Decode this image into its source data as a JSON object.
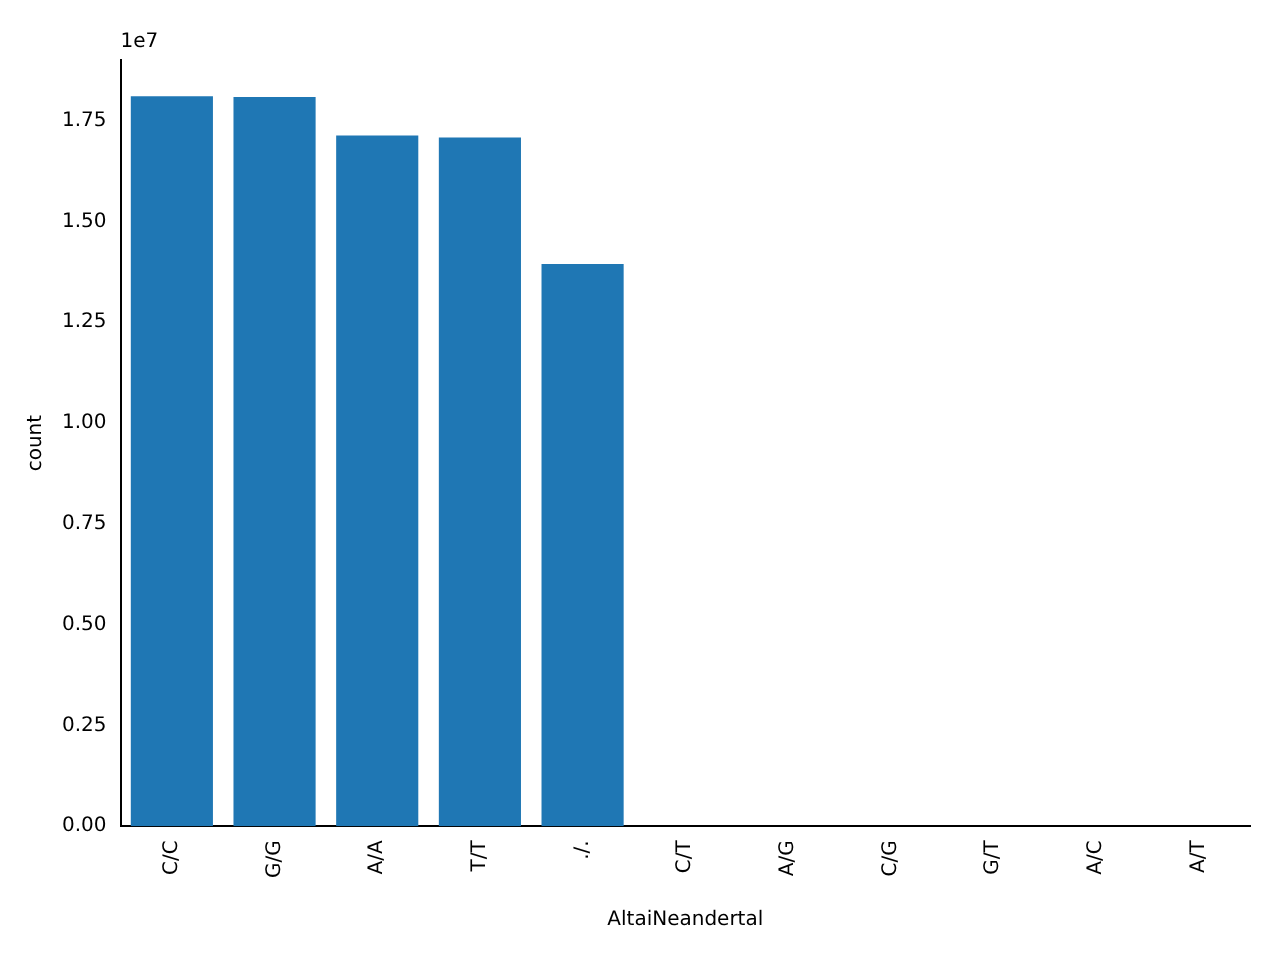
{
  "chart_data": {
    "type": "bar",
    "xlabel": "AltaiNeandertal",
    "ylabel": "count",
    "categories": [
      "C/C",
      "G/G",
      "A/A",
      "T/T",
      "./.",
      "C/T",
      "A/G",
      "C/G",
      "G/T",
      "A/C",
      "A/T"
    ],
    "values": [
      1.81,
      1.808,
      1.713,
      1.708,
      1.394,
      0,
      0,
      0,
      0,
      0,
      0
    ],
    "color": "#1f77b4",
    "ylim": [
      0,
      1.9
    ],
    "yticks": [
      {
        "value": 0,
        "label": "0.00"
      },
      0.25,
      {
        "value": 0.5,
        "label": "0.50"
      },
      0.75,
      {
        "value": 1,
        "label": "1.00"
      },
      1.25,
      {
        "value": 1.5,
        "label": "1.50"
      },
      1.75
    ],
    "annotations": [
      "1e7"
    ],
    "grid": false
  }
}
